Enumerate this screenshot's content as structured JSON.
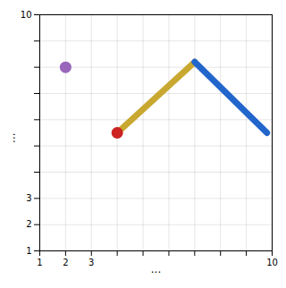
{
  "chart_data": {
    "type": "line",
    "xlim": [
      1,
      10
    ],
    "ylim": [
      1,
      10
    ],
    "xticks": [
      1,
      2,
      3,
      {
        "value": 4,
        "label": null
      },
      {
        "value": 5,
        "label": null
      },
      {
        "value": 6,
        "label": null
      },
      {
        "value": 7,
        "label": null
      },
      {
        "value": 8,
        "label": null
      },
      {
        "value": 9,
        "label": null
      },
      10
    ],
    "yticks": [
      1,
      2,
      3,
      {
        "value": 4,
        "label": null
      },
      {
        "value": 5,
        "label": null
      },
      {
        "value": 6,
        "label": null
      },
      {
        "value": 7,
        "label": null
      },
      {
        "value": 8,
        "label": null
      },
      {
        "value": 9,
        "label": null
      },
      10
    ],
    "grid": true,
    "annotations": [
      "...",
      "..."
    ],
    "series": [
      {
        "type": "line",
        "color": "#c8a830",
        "x": [
          4,
          7
        ],
        "values": [
          5.5,
          8.2
        ]
      },
      {
        "type": "line",
        "color": "#2266cc",
        "x": [
          7,
          9.8
        ],
        "values": [
          8.2,
          5.5
        ]
      },
      {
        "type": "scatter",
        "color": "#9966bb",
        "x": [
          2
        ],
        "values": [
          8
        ]
      },
      {
        "type": "scatter",
        "color": "#cc2222",
        "x": [
          4
        ],
        "values": [
          5.5
        ]
      }
    ]
  }
}
